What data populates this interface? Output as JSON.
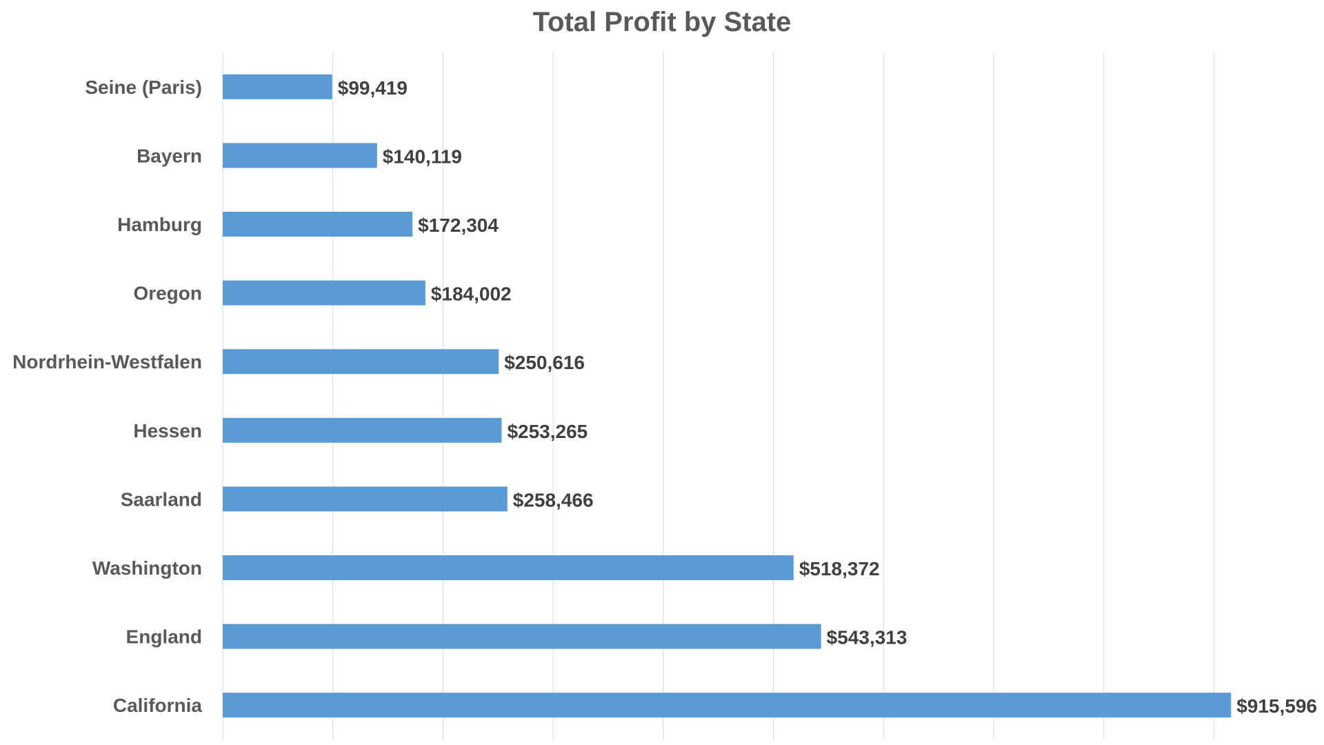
{
  "chart_data": {
    "type": "bar",
    "orientation": "horizontal",
    "title": "Total Profit by State",
    "xlabel": "",
    "ylabel": "",
    "categories": [
      "Seine (Paris)",
      "Bayern",
      "Hamburg",
      "Oregon",
      "Nordrhein-Westfalen",
      "Hessen",
      "Saarland",
      "Washington",
      "England",
      "California"
    ],
    "values": [
      99419,
      140119,
      172304,
      184002,
      250616,
      253265,
      258466,
      518372,
      543313,
      915596
    ],
    "data_labels": [
      "$99,419",
      "$140,119",
      "$172,304",
      "$184,002",
      "$250,616",
      "$253,265",
      "$258,466",
      "$518,372",
      "$543,313",
      "$915,596"
    ],
    "xlim": [
      0,
      1000000
    ],
    "gridlines": true,
    "x_tick_labels_visible": false,
    "legend": "none",
    "bar_color": "#5b9bd5"
  }
}
